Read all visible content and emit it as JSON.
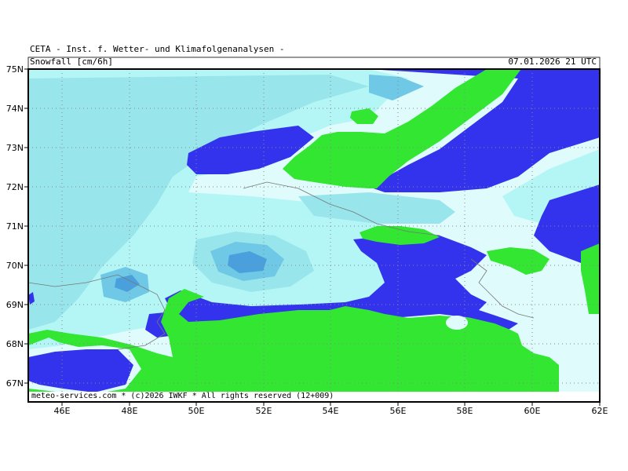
{
  "header": {
    "institute": "CETA - Inst. f. Wetter- und Klimafolgenanalysen -",
    "parameter": "Snowfall [cm/6h]",
    "valid_time": "07.01.2026 21 UTC"
  },
  "footer": {
    "credit": "meteo-services.com * (c)2026 IWKF * All rights reserved (12+009)"
  },
  "axes": {
    "lat_labels": [
      "75N",
      "74N",
      "73N",
      "72N",
      "71N",
      "70N",
      "69N",
      "68N",
      "67N"
    ],
    "lon_labels": [
      "46E",
      "48E",
      "50E",
      "52E",
      "54E",
      "56E",
      "58E",
      "60E",
      "62E"
    ]
  },
  "colors": {
    "land_green": "#32e632",
    "sea_blue": "#3333ee",
    "snow_lightest": "#e0fbfb",
    "snow_light": "#b4f6f6",
    "snow_medium": "#98e6ec",
    "snow_heavy": "#6fc8e6",
    "snow_heaviest": "#4aa0dc",
    "coastline": "#777777",
    "grid": "#888888"
  }
}
